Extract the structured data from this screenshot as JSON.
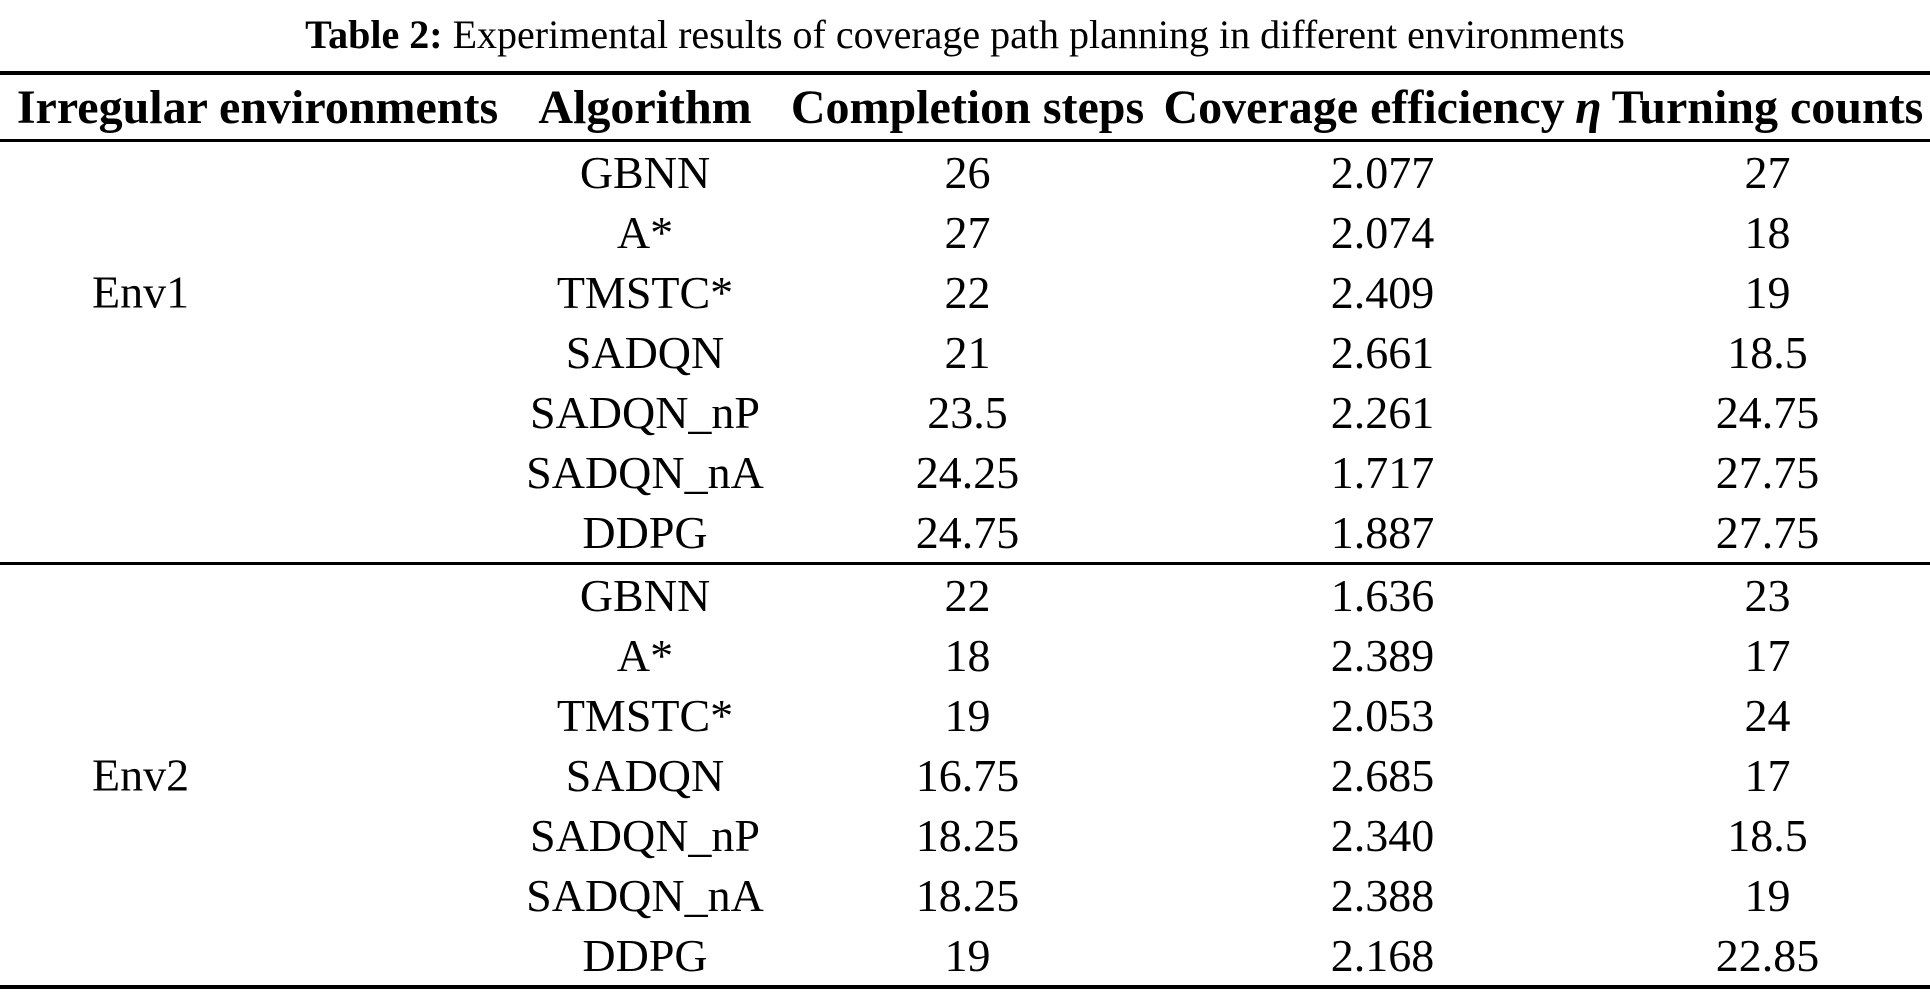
{
  "title": {
    "label": "Table 2:",
    "text": " Experimental results of coverage path planning in different environments"
  },
  "table": {
    "headers": {
      "environments": "Irregular environments",
      "algorithm": "Algorithm",
      "completion_steps": "Completion steps",
      "coverage_efficiency": "Coverage efficiency",
      "coverage_efficiency_symbol": "η",
      "turning_counts": "Turning counts"
    },
    "groups": [
      {
        "environment": "Env1",
        "rows": [
          {
            "algorithm": "GBNN",
            "completion_steps": "26",
            "coverage_efficiency": "2.077",
            "turning_counts": "27"
          },
          {
            "algorithm": "A*",
            "completion_steps": "27",
            "coverage_efficiency": "2.074",
            "turning_counts": "18"
          },
          {
            "algorithm": "TMSTC*",
            "completion_steps": "22",
            "coverage_efficiency": "2.409",
            "turning_counts": "19"
          },
          {
            "algorithm": "SADQN",
            "completion_steps": "21",
            "coverage_efficiency": "2.661",
            "turning_counts": "18.5"
          },
          {
            "algorithm": "SADQN_nP",
            "completion_steps": "23.5",
            "coverage_efficiency": "2.261",
            "turning_counts": "24.75"
          },
          {
            "algorithm": "SADQN_nA",
            "completion_steps": "24.25",
            "coverage_efficiency": "1.717",
            "turning_counts": "27.75"
          },
          {
            "algorithm": "DDPG",
            "completion_steps": "24.75",
            "coverage_efficiency": "1.887",
            "turning_counts": "27.75"
          }
        ]
      },
      {
        "environment": "Env2",
        "rows": [
          {
            "algorithm": "GBNN",
            "completion_steps": "22",
            "coverage_efficiency": "1.636",
            "turning_counts": "23"
          },
          {
            "algorithm": "A*",
            "completion_steps": "18",
            "coverage_efficiency": "2.389",
            "turning_counts": "17"
          },
          {
            "algorithm": "TMSTC*",
            "completion_steps": "19",
            "coverage_efficiency": "2.053",
            "turning_counts": "24"
          },
          {
            "algorithm": "SADQN",
            "completion_steps": "16.75",
            "coverage_efficiency": "2.685",
            "turning_counts": "17"
          },
          {
            "algorithm": "SADQN_nP",
            "completion_steps": "18.25",
            "coverage_efficiency": "2.340",
            "turning_counts": "18.5"
          },
          {
            "algorithm": "SADQN_nA",
            "completion_steps": "18.25",
            "coverage_efficiency": "2.388",
            "turning_counts": "19"
          },
          {
            "algorithm": "DDPG",
            "completion_steps": "19",
            "coverage_efficiency": "2.168",
            "turning_counts": "22.85"
          }
        ]
      }
    ]
  },
  "colors": {
    "text": "#000000",
    "background": "#ffffff",
    "rule": "#000000"
  }
}
